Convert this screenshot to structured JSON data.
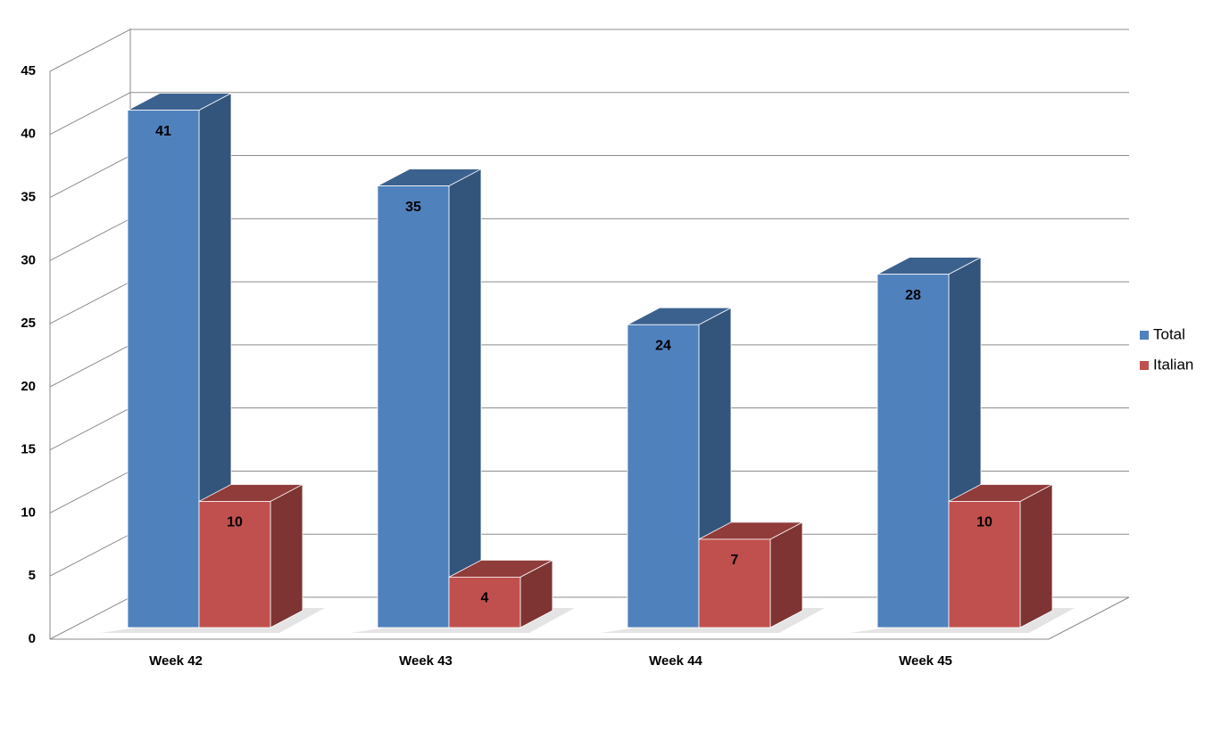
{
  "chart_data": {
    "type": "bar3d",
    "categories": [
      "Week 42",
      "Week 43",
      "Week 44",
      "Week 45"
    ],
    "series": [
      {
        "name": "Total",
        "color": "#4f81bd",
        "values": [
          41,
          35,
          24,
          28
        ]
      },
      {
        "name": "Italian",
        "color": "#c0504d",
        "values": [
          10,
          4,
          7,
          10
        ]
      }
    ],
    "ylim": [
      0,
      45
    ],
    "yticks": [
      0,
      5,
      10,
      15,
      20,
      25,
      30,
      35,
      40,
      45
    ],
    "grid": true,
    "legend": "right",
    "data_labels": true
  }
}
